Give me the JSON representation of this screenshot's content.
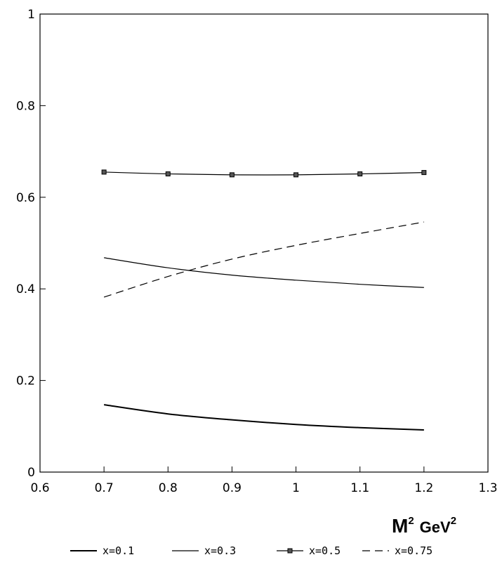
{
  "chart_data": {
    "type": "line",
    "xlabel": "M² GeV²",
    "xlabel_main": "M",
    "xlabel_sup1": "2",
    "xlabel_unit": "GeV",
    "xlabel_sup2": "2",
    "ylabel": "",
    "xlim": [
      0.6,
      1.3
    ],
    "ylim": [
      0,
      1
    ],
    "xticks": [
      "0.6",
      "0.7",
      "0.8",
      "0.9",
      "1",
      "1.1",
      "1.2",
      "1.3"
    ],
    "yticks": [
      "0",
      "0.2",
      "0.4",
      "0.6",
      "0.8",
      "1"
    ],
    "x": [
      0.7,
      0.8,
      0.9,
      1.0,
      1.1,
      1.2
    ],
    "series": [
      {
        "name": "x=0.1",
        "style": "solid-thick",
        "values": [
          0.147,
          0.127,
          0.114,
          0.104,
          0.097,
          0.092
        ]
      },
      {
        "name": "x=0.3",
        "style": "solid-thin",
        "values": [
          0.468,
          0.446,
          0.43,
          0.419,
          0.41,
          0.403
        ]
      },
      {
        "name": "x=0.5",
        "style": "solid-squares",
        "values": [
          0.655,
          0.651,
          0.649,
          0.649,
          0.651,
          0.654
        ]
      },
      {
        "name": "x=0.75",
        "style": "dashed",
        "values": [
          0.382,
          0.427,
          0.465,
          0.495,
          0.521,
          0.546
        ]
      }
    ],
    "grid": false,
    "legend_position": "bottom",
    "colors": {
      "line": "#000000",
      "background": "#ffffff"
    }
  }
}
